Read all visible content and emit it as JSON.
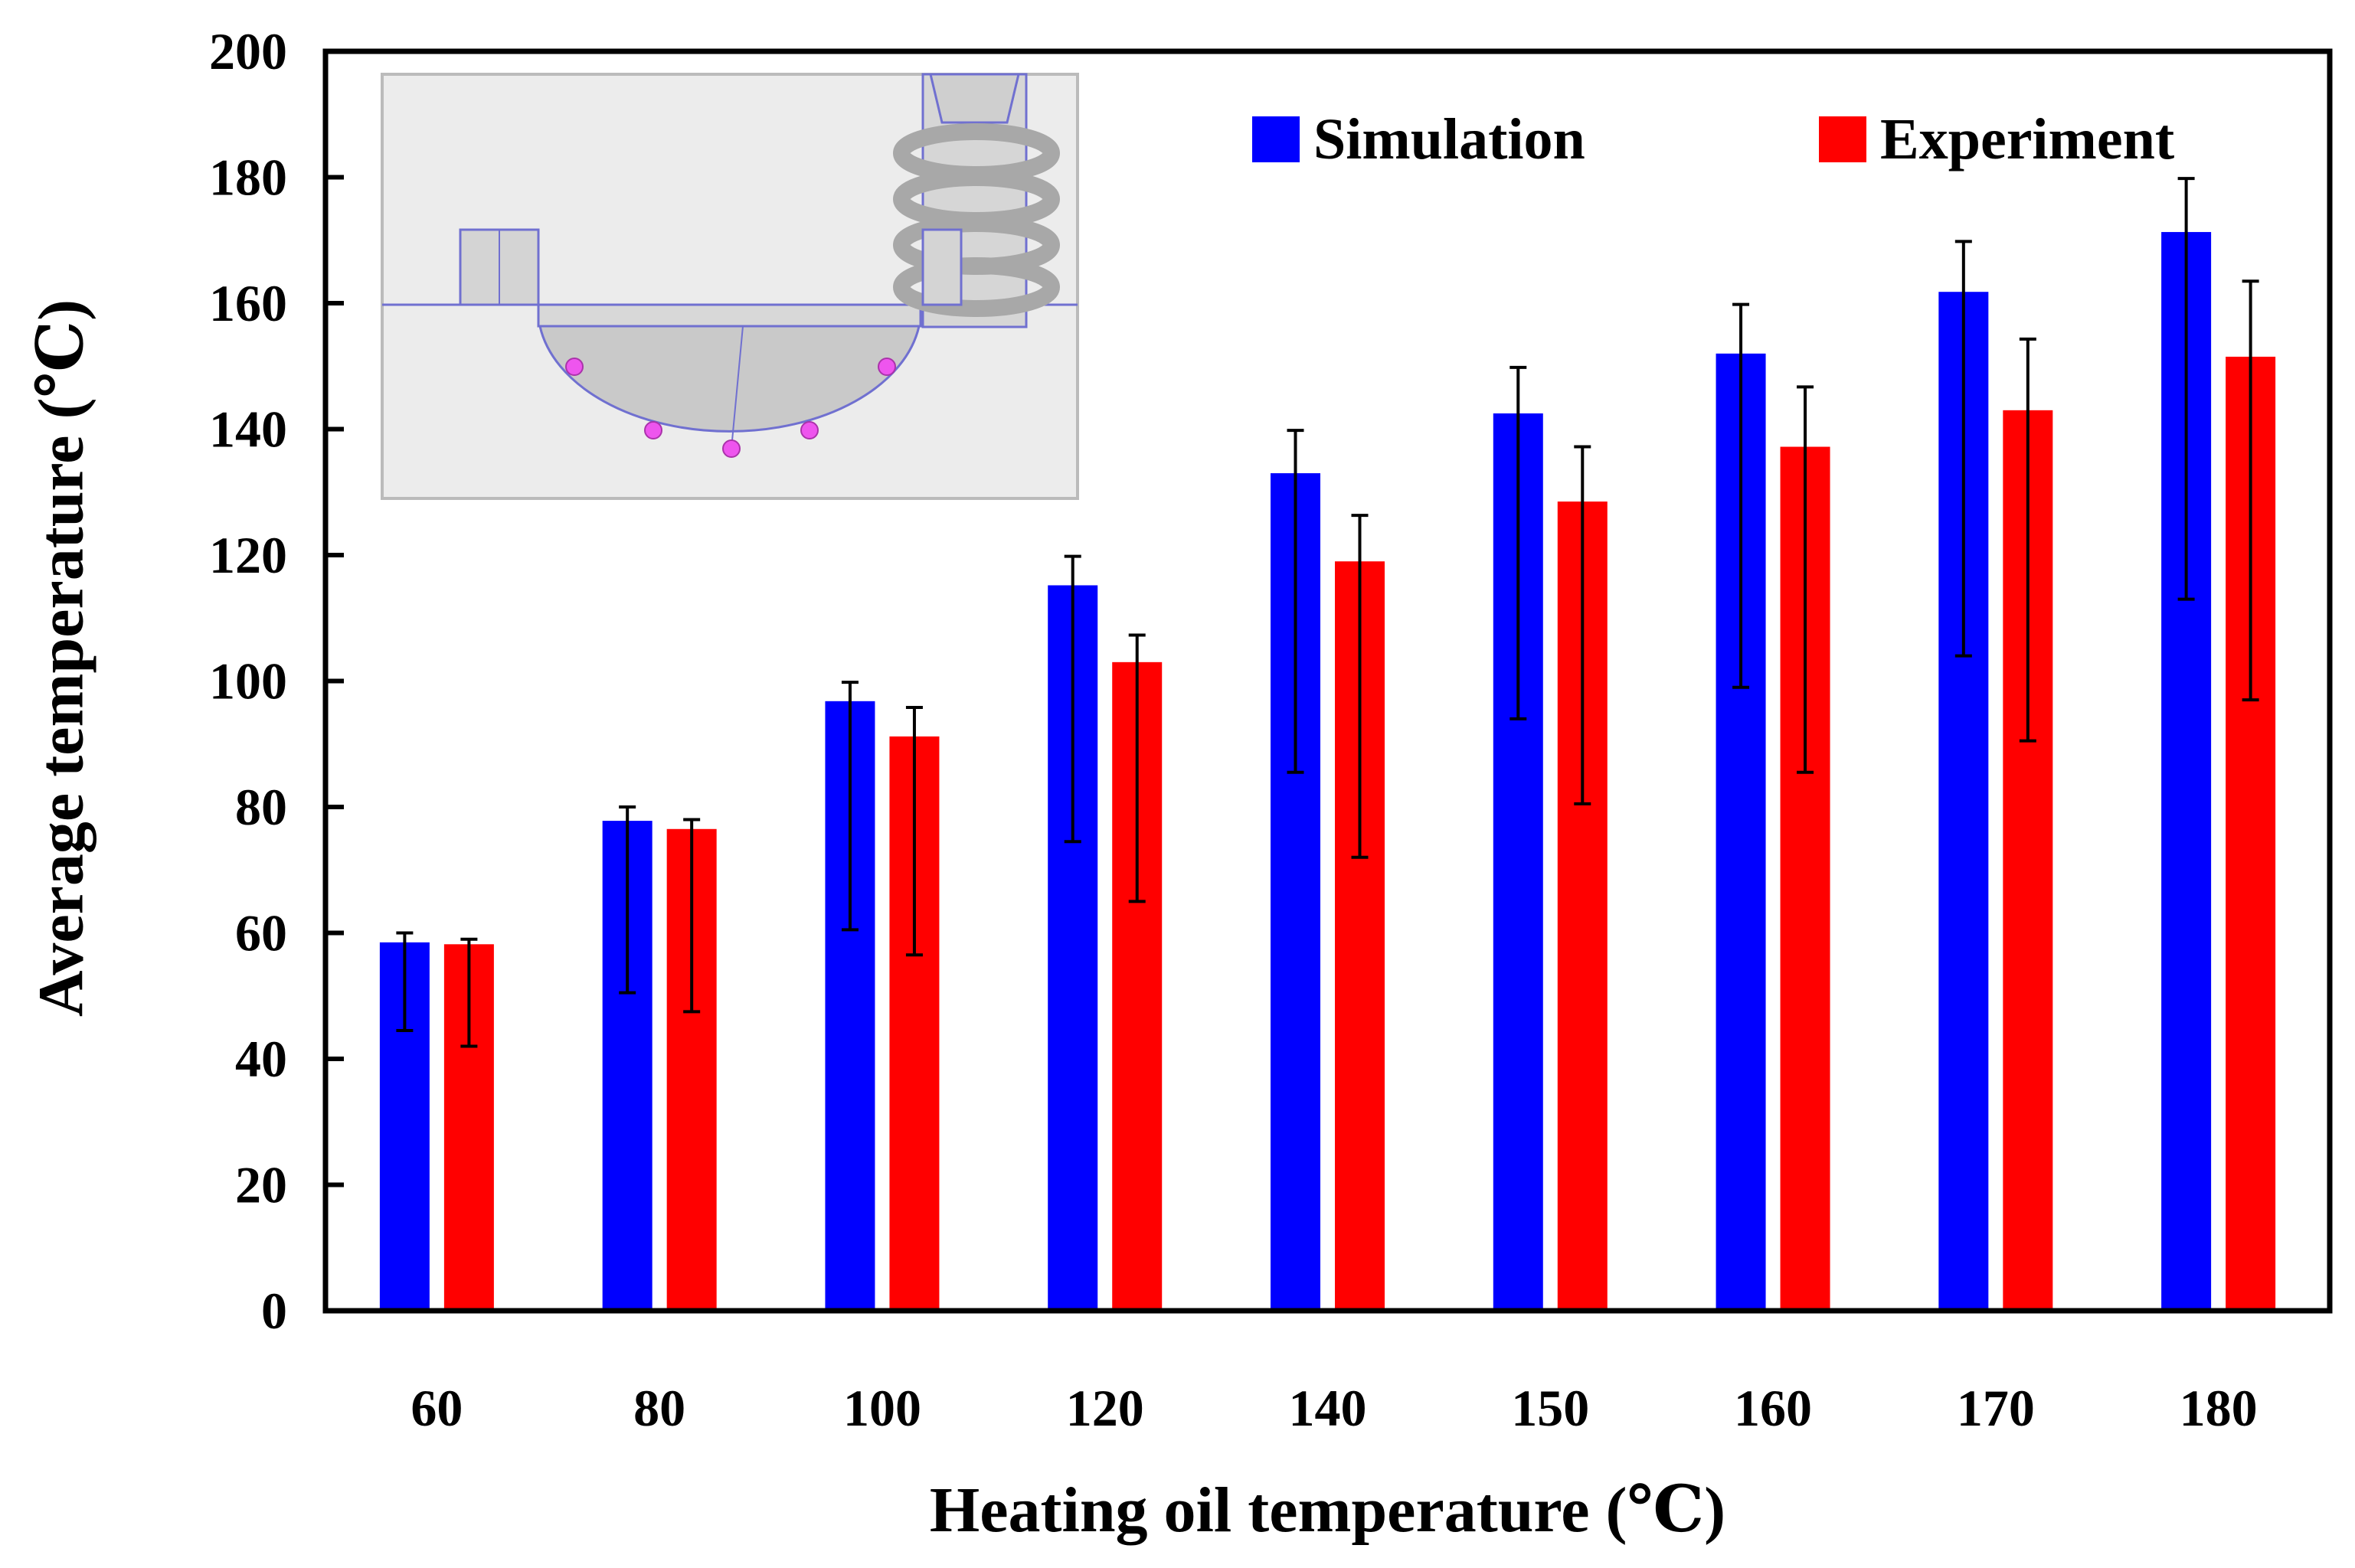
{
  "chart_data": {
    "type": "bar",
    "title": "",
    "xlabel": "Heating oil temperature (℃)",
    "ylabel": "Average temperature (℃)",
    "ylim": [
      0,
      200
    ],
    "yticks": [
      0,
      20,
      40,
      60,
      80,
      100,
      120,
      140,
      160,
      180,
      200
    ],
    "grid": false,
    "legend_position": "top-right",
    "categories": [
      "60",
      "80",
      "100",
      "120",
      "140",
      "150",
      "160",
      "170",
      "180"
    ],
    "series": [
      {
        "name": "Simulation",
        "color": "#0000FF",
        "values": [
          58.5,
          77.8,
          96.8,
          115.2,
          133.0,
          142.5,
          152.0,
          161.8,
          171.3
        ],
        "error_low": [
          44.5,
          50.5,
          60.5,
          74.5,
          85.5,
          94.0,
          99.0,
          104.0,
          113.0
        ],
        "error_high": [
          60.0,
          80.0,
          99.8,
          119.8,
          139.8,
          149.8,
          159.8,
          169.8,
          179.8
        ]
      },
      {
        "name": "Experiment",
        "color": "#FF0000",
        "values": [
          58.2,
          76.5,
          91.2,
          103.0,
          119.0,
          128.5,
          137.2,
          143.0,
          151.5
        ],
        "error_low": [
          42.0,
          47.5,
          56.5,
          65.0,
          72.0,
          80.5,
          85.5,
          90.5,
          97.0
        ],
        "error_high": [
          59.0,
          78.0,
          95.8,
          107.3,
          126.3,
          137.2,
          146.7,
          154.3,
          163.5
        ]
      }
    ],
    "inset": {
      "description_icon": "hemisphere-mold-inset-diagram-icon"
    }
  }
}
